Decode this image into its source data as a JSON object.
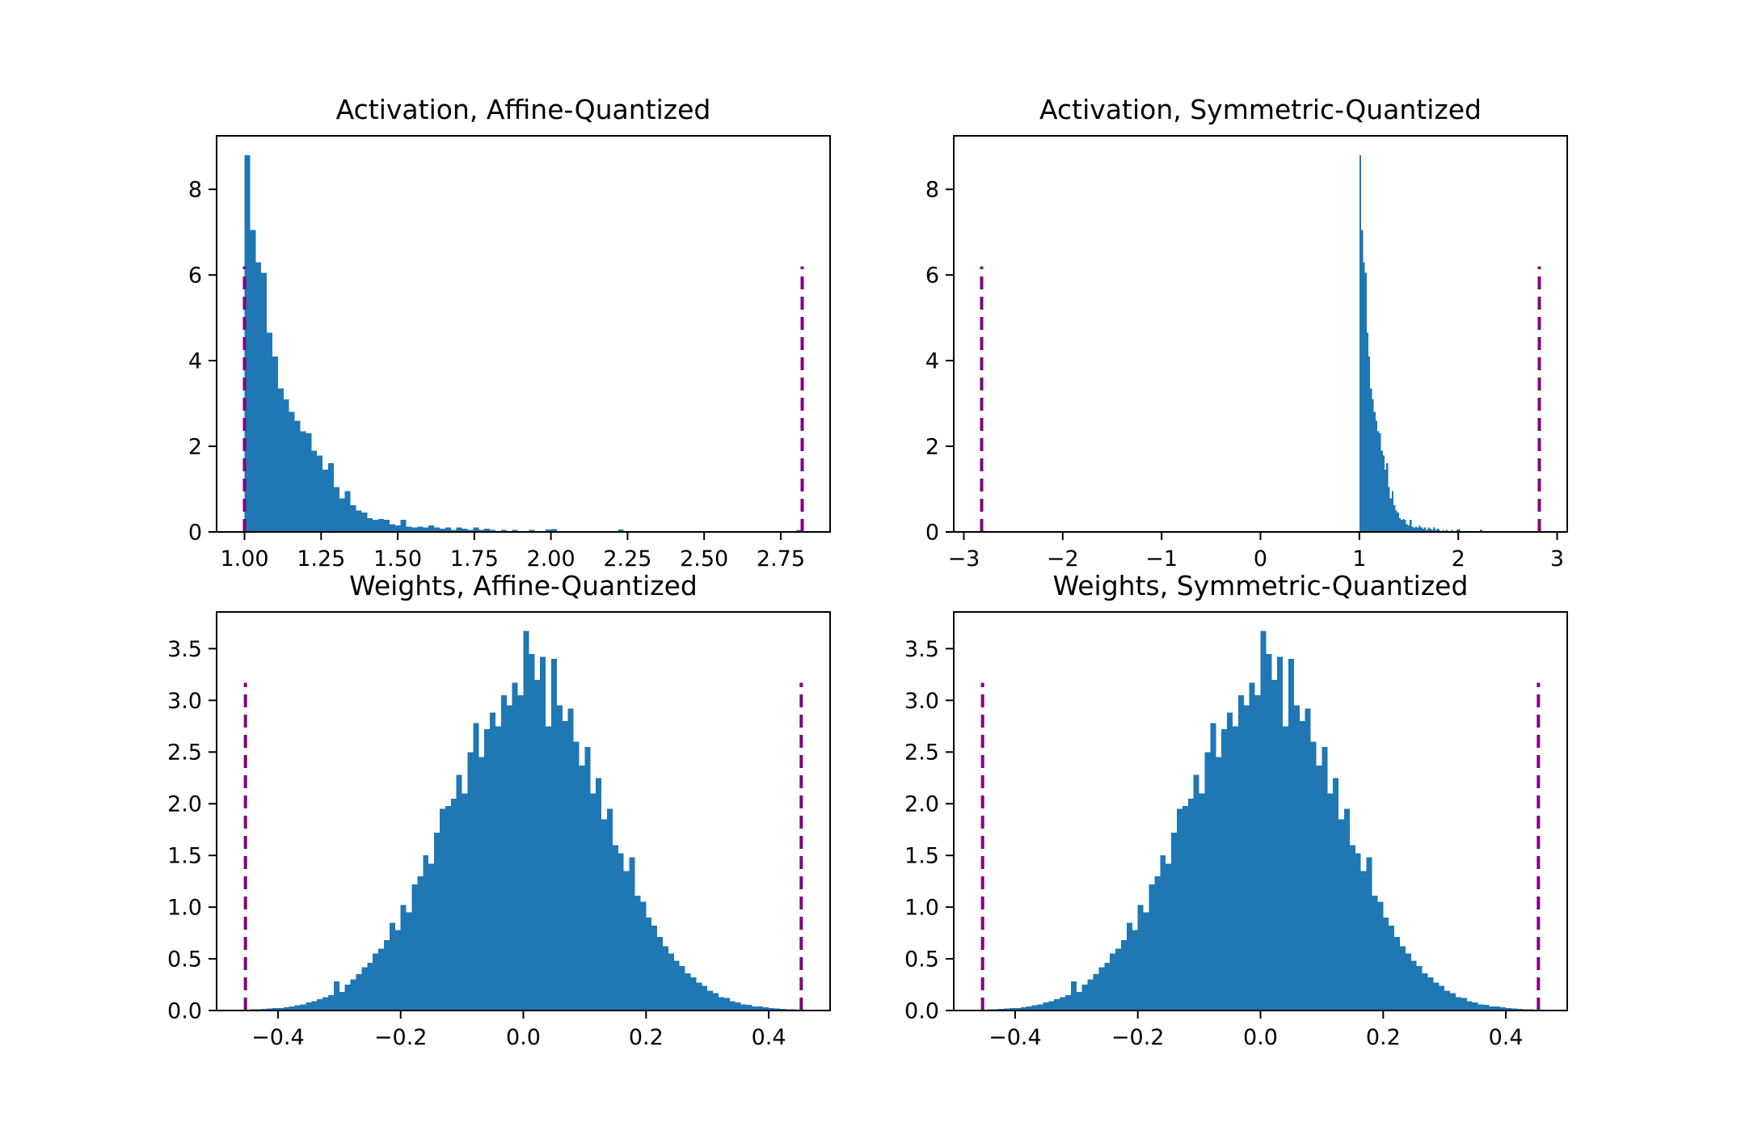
{
  "figure": {
    "background": "#ffffff",
    "bar_color": "#1f77b4",
    "clip_line_color": "#800080",
    "axis_color": "#000000"
  },
  "chart_data": [
    {
      "id": "activation-affine",
      "type": "bar",
      "title": "Activation, Affine-Quantized",
      "hist": "activation",
      "grid": false,
      "legend": null,
      "xlim": [
        0.909,
        2.911
      ],
      "ylim": [
        0,
        9.25
      ],
      "xtick_values": [
        1.0,
        1.25,
        1.5,
        1.75,
        2.0,
        2.25,
        2.5,
        2.75
      ],
      "xtick_labels": [
        "1.00",
        "1.25",
        "1.50",
        "1.75",
        "2.00",
        "2.25",
        "2.50",
        "2.75"
      ],
      "ytick_values": [
        0,
        2,
        4,
        6,
        8
      ],
      "ytick_labels": [
        "0",
        "2",
        "4",
        "6",
        "8"
      ],
      "clip_lines_x": [
        1.0,
        2.82
      ],
      "clip_line_ymax": 6.2
    },
    {
      "id": "activation-symmetric",
      "type": "bar",
      "title": "Activation, Symmetric-Quantized",
      "hist": "activation",
      "grid": false,
      "legend": null,
      "xlim": [
        -3.102,
        3.102
      ],
      "ylim": [
        0,
        9.25
      ],
      "xtick_values": [
        -3,
        -2,
        -1,
        0,
        1,
        2,
        3
      ],
      "xtick_labels": [
        "−3",
        "−2",
        "−1",
        "0",
        "1",
        "2",
        "3"
      ],
      "ytick_values": [
        0,
        2,
        4,
        6,
        8
      ],
      "ytick_labels": [
        "0",
        "2",
        "4",
        "6",
        "8"
      ],
      "clip_lines_x": [
        -2.82,
        2.82
      ],
      "clip_line_ymax": 6.2
    },
    {
      "id": "weights-affine",
      "type": "bar",
      "title": "Weights, Affine-Quantized",
      "hist": "weights",
      "grid": false,
      "legend": null,
      "xlim": [
        -0.5,
        0.5
      ],
      "ylim": [
        0,
        3.855
      ],
      "xtick_values": [
        -0.4,
        -0.2,
        0.0,
        0.2,
        0.4
      ],
      "xtick_labels": [
        "−0.4",
        "−0.2",
        "0.0",
        "0.2",
        "0.4"
      ],
      "ytick_values": [
        0,
        0.5,
        1.0,
        1.5,
        2.0,
        2.5,
        3.0,
        3.5
      ],
      "ytick_labels": [
        "0.0",
        "0.5",
        "1.0",
        "1.5",
        "2.0",
        "2.5",
        "3.0",
        "3.5"
      ],
      "clip_lines_x": [
        -0.453,
        0.453
      ],
      "clip_line_ymax": 3.17
    },
    {
      "id": "weights-symmetric",
      "type": "bar",
      "title": "Weights, Symmetric-Quantized",
      "hist": "weights",
      "grid": false,
      "legend": null,
      "xlim": [
        -0.5,
        0.5
      ],
      "ylim": [
        0,
        3.855
      ],
      "xtick_values": [
        -0.4,
        -0.2,
        0.0,
        0.2,
        0.4
      ],
      "xtick_labels": [
        "−0.4",
        "−0.2",
        "0.0",
        "0.2",
        "0.4"
      ],
      "ytick_values": [
        0,
        0.5,
        1.0,
        1.5,
        2.0,
        2.5,
        3.0,
        3.5
      ],
      "ytick_labels": [
        "0.0",
        "0.5",
        "1.0",
        "1.5",
        "2.0",
        "2.5",
        "3.0",
        "3.5"
      ],
      "clip_lines_x": [
        -0.453,
        0.453
      ],
      "clip_line_ymax": 3.17
    }
  ],
  "hist_data": {
    "activation": {
      "bin_start": 1.0,
      "bin_width": 0.0182,
      "heights": [
        8.8,
        7.05,
        6.3,
        6.05,
        4.65,
        4.1,
        3.35,
        3.1,
        2.8,
        2.6,
        2.35,
        2.3,
        1.9,
        1.78,
        1.45,
        1.6,
        1.05,
        0.78,
        0.95,
        0.62,
        0.5,
        0.45,
        0.32,
        0.28,
        0.3,
        0.28,
        0.18,
        0.15,
        0.28,
        0.12,
        0.1,
        0.12,
        0.1,
        0.15,
        0.1,
        0.08,
        0.1,
        0.05,
        0.1,
        0.08,
        0.05,
        0.1,
        0.05,
        0.08,
        0.05,
        0,
        0.05,
        0,
        0.05,
        0,
        0,
        0.05,
        0,
        0,
        0.06,
        0.07,
        0,
        0,
        0,
        0,
        0,
        0,
        0,
        0,
        0,
        0,
        0,
        0.06,
        0,
        0,
        0,
        0,
        0,
        0,
        0,
        0,
        0,
        0,
        0,
        0,
        0,
        0,
        0,
        0,
        0,
        0,
        0,
        0,
        0,
        0,
        0,
        0,
        0,
        0,
        0,
        0,
        0,
        0,
        0,
        0.05
      ]
    },
    "weights": {
      "bin_start": -0.4545,
      "bin_width": 0.00909,
      "heights": [
        0.008,
        0.012,
        0.01,
        0.015,
        0.018,
        0.025,
        0.022,
        0.032,
        0.04,
        0.05,
        0.06,
        0.08,
        0.09,
        0.11,
        0.13,
        0.15,
        0.28,
        0.18,
        0.25,
        0.3,
        0.35,
        0.42,
        0.46,
        0.55,
        0.6,
        0.68,
        0.85,
        0.78,
        1.02,
        0.95,
        1.22,
        1.3,
        1.5,
        1.42,
        1.72,
        1.95,
        1.98,
        2.05,
        2.28,
        2.1,
        2.5,
        2.78,
        2.45,
        2.72,
        2.88,
        2.75,
        3.05,
        2.95,
        3.17,
        3.05,
        3.67,
        3.45,
        3.2,
        3.42,
        2.75,
        3.4,
        2.95,
        2.8,
        2.92,
        2.6,
        2.37,
        2.55,
        2.1,
        2.25,
        1.85,
        1.95,
        1.6,
        1.52,
        1.35,
        1.48,
        1.11,
        1.05,
        0.9,
        0.82,
        0.71,
        0.62,
        0.55,
        0.48,
        0.43,
        0.36,
        0.32,
        0.27,
        0.24,
        0.19,
        0.17,
        0.13,
        0.12,
        0.09,
        0.08,
        0.06,
        0.055,
        0.04,
        0.038,
        0.03,
        0.025,
        0.018,
        0.015,
        0.012,
        0.01,
        0.008
      ]
    }
  }
}
